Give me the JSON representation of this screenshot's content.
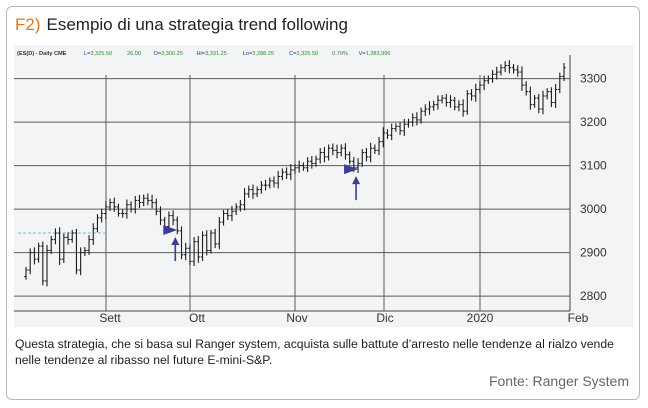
{
  "figure": {
    "label": "F2)",
    "title": "Esempio di una strategia trend following",
    "caption": "Questa strategia, che si basa sul Ranger system, acquista sulle battute d’arresto nelle tendenze al rialzo vende nelle tendenze al ribasso nel future E-mini-S&P.",
    "source": "Fonte: Ranger System"
  },
  "colors": {
    "accent": "#e6761e",
    "bars": "#1c1c1c",
    "arrow": "#3a3f95",
    "grid": "#5a5a5a",
    "header_labels": "#2a34a0",
    "header_values": "#2b8a2b"
  },
  "chart_header": {
    "symbol": "(ES(D) - Daily  CME",
    "items": [
      {
        "label": "L=",
        "value": "3,325.50"
      },
      {
        "label": "",
        "value": "26.00"
      },
      {
        "label": "O=",
        "value": "3,300.25"
      },
      {
        "label": "Hi=",
        "value": "3,331.25"
      },
      {
        "label": "Lo=",
        "value": "3,288.25"
      },
      {
        "label": "C=",
        "value": "3,325.50"
      },
      {
        "label": "",
        "value": "0.79%"
      },
      {
        "label": "V=",
        "value": "1,383,996"
      }
    ]
  },
  "chart_data": {
    "type": "ohlc",
    "series_name": "E-mini S&P 500 futures, daily",
    "x_tick_labels": [
      "Sett",
      "Ott",
      "Nov",
      "Dic",
      "2020",
      "Feb"
    ],
    "y_tick_labels": [
      2800,
      2900,
      3000,
      3100,
      3200,
      3300
    ],
    "ylim": [
      2775,
      3345
    ],
    "grid": true,
    "closes": [
      2860,
      2900,
      2885,
      2915,
      2835,
      2905,
      2930,
      2945,
      2885,
      2935,
      2930,
      2945,
      2860,
      2900,
      2905,
      2930,
      2955,
      2980,
      2990,
      3005,
      3015,
      3005,
      2990,
      2990,
      3010,
      3000,
      3020,
      3015,
      3025,
      3020,
      3015,
      2995,
      2975,
      2960,
      2985,
      2975,
      2950,
      2895,
      2910,
      2880,
      2925,
      2890,
      2940,
      2905,
      2945,
      2920,
      2970,
      2990,
      2985,
      2995,
      3005,
      3010,
      3035,
      3045,
      3035,
      3045,
      3055,
      3055,
      3065,
      3060,
      3075,
      3085,
      3080,
      3090,
      3095,
      3100,
      3095,
      3110,
      3105,
      3115,
      3130,
      3120,
      3140,
      3135,
      3130,
      3140,
      3125,
      3110,
      3095,
      3105,
      3130,
      3120,
      3140,
      3135,
      3155,
      3175,
      3170,
      3185,
      3190,
      3180,
      3195,
      3200,
      3210,
      3205,
      3225,
      3230,
      3235,
      3240,
      3250,
      3255,
      3245,
      3250,
      3235,
      3240,
      3225,
      3265,
      3260,
      3275,
      3285,
      3295,
      3300,
      3310,
      3315,
      3325,
      3330,
      3325,
      3320,
      3315,
      3285,
      3270,
      3240,
      3255,
      3230,
      3260,
      3270,
      3245,
      3275,
      3305,
      3325
    ],
    "markers": [
      {
        "type": "buy-arrow",
        "direction": "up",
        "bar_index": 36,
        "price": 2945
      },
      {
        "type": "buy-arrow",
        "direction": "up",
        "bar_index": 79,
        "price": 3085
      }
    ]
  }
}
